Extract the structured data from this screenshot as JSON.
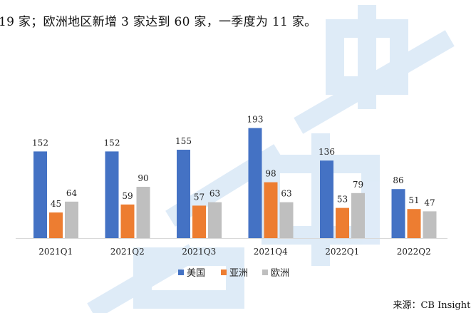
{
  "intro_text": "19 家；欧洲地区新增 3 家达到 60 家，一季度为 11 家。",
  "source_text": "来源：CB Insights",
  "watermark": {
    "color": "#b8d3ef"
  },
  "chart_data": {
    "type": "bar",
    "title": "",
    "xlabel": "",
    "ylabel": "",
    "ylim": [
      0,
      200
    ],
    "grid": false,
    "legend_position": "bottom-center",
    "categories": [
      "2021Q1",
      "2021Q2",
      "2021Q3",
      "2021Q4",
      "2022Q1",
      "2022Q2"
    ],
    "series": [
      {
        "name": "美国",
        "color": "#4472c4",
        "values": [
          152,
          152,
          155,
          193,
          136,
          86
        ]
      },
      {
        "name": "亚洲",
        "color": "#ed7d31",
        "values": [
          45,
          59,
          57,
          98,
          53,
          51
        ]
      },
      {
        "name": "欧洲",
        "color": "#bfbfbf",
        "values": [
          64,
          90,
          63,
          63,
          79,
          47
        ]
      }
    ]
  }
}
